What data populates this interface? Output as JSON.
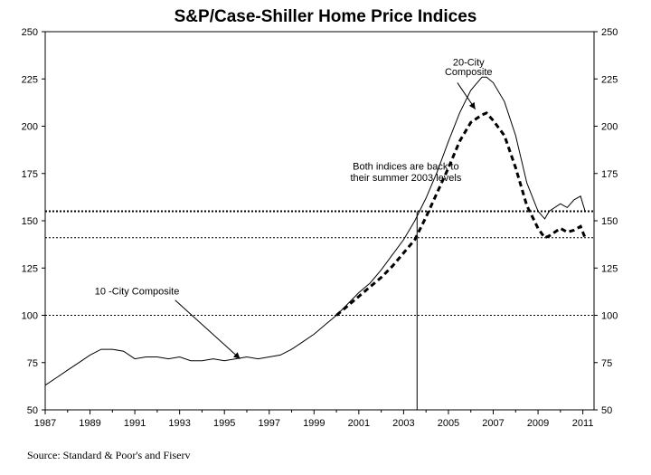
{
  "chart_data": {
    "type": "line",
    "title": "S&P/Case-Shiller Home Price Indices",
    "source": "Source: Standard & Poor's and Fiserv",
    "ylim": [
      50,
      250
    ],
    "xlim": [
      1987,
      2011.5
    ],
    "y_ticks": [
      "50",
      "75",
      "100",
      "125",
      "150",
      "175",
      "200",
      "225",
      "250"
    ],
    "x_ticks": [
      "1987",
      "1989",
      "1991",
      "1993",
      "1995",
      "1997",
      "1999",
      "2001",
      "2003",
      "2005",
      "2007",
      "2009",
      "2011"
    ],
    "grid": false,
    "reference_lines": [
      {
        "y": 155,
        "style": "dotted"
      },
      {
        "y": 141,
        "style": "dotted"
      },
      {
        "y": 100,
        "style": "dotted"
      }
    ],
    "marker_line_x": 2003.6,
    "series": [
      {
        "name": "10 -City Composite",
        "style": "solid",
        "x": [
          1987,
          1987.5,
          1988,
          1988.5,
          1989,
          1989.5,
          1990,
          1990.5,
          1991,
          1991.5,
          1992,
          1992.5,
          1993,
          1993.5,
          1994,
          1994.5,
          1995,
          1995.5,
          1996,
          1996.5,
          1997,
          1997.5,
          1998,
          1998.5,
          1999,
          1999.5,
          2000,
          2000.5,
          2001,
          2001.5,
          2002,
          2002.5,
          2003,
          2003.5,
          2004,
          2004.5,
          2005,
          2005.5,
          2006,
          2006.5,
          2006.7,
          2007,
          2007.5,
          2008,
          2008.5,
          2009,
          2009.3,
          2009.5,
          2010,
          2010.3,
          2010.6,
          2010.9,
          2011.1
        ],
        "values": [
          63,
          67,
          71,
          75,
          79,
          82,
          82,
          81,
          77,
          78,
          78,
          77,
          78,
          76,
          76,
          77,
          76,
          77,
          78,
          77,
          78,
          79,
          82,
          86,
          90,
          95,
          100,
          106,
          112,
          117,
          124,
          132,
          140,
          150,
          162,
          176,
          192,
          207,
          219,
          226,
          226,
          223,
          213,
          195,
          170,
          155,
          151,
          155,
          159,
          157,
          161,
          163,
          155
        ]
      },
      {
        "name": "20-City Composite",
        "style": "dashed",
        "x": [
          2000,
          2000.5,
          2001,
          2001.5,
          2002,
          2002.5,
          2003,
          2003.5,
          2004,
          2004.5,
          2005,
          2005.5,
          2006,
          2006.5,
          2006.7,
          2007,
          2007.5,
          2008,
          2008.5,
          2009,
          2009.3,
          2009.5,
          2010,
          2010.3,
          2010.6,
          2010.9,
          2011.1
        ],
        "values": [
          100,
          105,
          110,
          115,
          120,
          126,
          133,
          140,
          152,
          165,
          178,
          192,
          202,
          206,
          207,
          203,
          195,
          178,
          158,
          146,
          141,
          142,
          146,
          144,
          145,
          147,
          141
        ]
      }
    ],
    "annotations": [
      {
        "text": "20-City",
        "x": 2005.9,
        "y": 232
      },
      {
        "text": "Composite",
        "x": 2005.9,
        "y": 227
      },
      {
        "text": "Both indices are back to",
        "x": 2003.1,
        "y": 177
      },
      {
        "text": "their summer 2003 levels",
        "x": 2003.1,
        "y": 171
      },
      {
        "text": "10 -City Composite",
        "x": 1991.1,
        "y": 111
      }
    ]
  }
}
